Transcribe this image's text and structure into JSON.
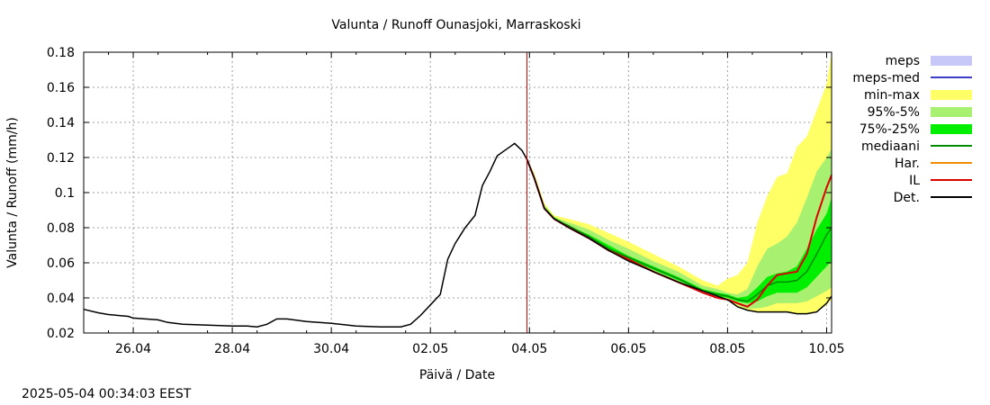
{
  "chart_data": {
    "type": "line",
    "title": "Valunta / Runoff  Ounasjoki, Marraskoski",
    "xlabel": "Päivä / Date",
    "ylabel": "Valunta / Runoff  (mm/h)",
    "timestamp": "2025-05-04 00:34:03 EEST",
    "x_range_days": [
      0,
      15.1
    ],
    "x_ticks": [
      {
        "day": 1,
        "label": "26.04"
      },
      {
        "day": 3,
        "label": "28.04"
      },
      {
        "day": 5,
        "label": "30.04"
      },
      {
        "day": 7,
        "label": "02.05"
      },
      {
        "day": 9,
        "label": "04.05"
      },
      {
        "day": 11,
        "label": "06.05"
      },
      {
        "day": 13,
        "label": "08.05"
      },
      {
        "day": 15,
        "label": "10.05"
      }
    ],
    "ylim": [
      0.02,
      0.18
    ],
    "y_ticks": [
      0.02,
      0.04,
      0.06,
      0.08,
      0.1,
      0.12,
      0.14,
      0.16,
      0.18
    ],
    "grid": true,
    "legend_position": "right",
    "current_time_day": 8.95,
    "colors": {
      "meps": "#c8c8f8",
      "meps_med": "#3c3cc8",
      "min_max": "#ffff66",
      "p95_5": "#a8f070",
      "p75_25": "#00ee00",
      "mediaani": "#008c00",
      "har": "#f08c00",
      "il": "#dc0000",
      "det": "#000000",
      "now_line": "#c80000"
    },
    "legend": [
      {
        "name": "meps",
        "style": "fill",
        "color_key": "meps"
      },
      {
        "name": "meps-med",
        "style": "line",
        "color_key": "meps_med"
      },
      {
        "name": "min-max",
        "style": "fill",
        "color_key": "min_max"
      },
      {
        "name": "95%-5%",
        "style": "fill",
        "color_key": "p95_5"
      },
      {
        "name": "75%-25%",
        "style": "fill",
        "color_key": "p75_25"
      },
      {
        "name": "mediaani",
        "style": "line",
        "color_key": "mediaani"
      },
      {
        "name": "Har.",
        "style": "line",
        "color_key": "har"
      },
      {
        "name": "IL",
        "style": "line",
        "color_key": "il"
      },
      {
        "name": "Det.",
        "style": "line",
        "color_key": "det"
      }
    ],
    "observed": {
      "name": "Det.",
      "x": [
        0,
        0.3,
        0.5,
        0.9,
        1.0,
        1.5,
        1.7,
        2.0,
        2.5,
        3.0,
        3.3,
        3.5,
        3.7,
        3.9,
        4.1,
        4.5,
        5.0,
        5.5,
        6.0,
        6.4,
        6.6,
        6.8,
        7.0,
        7.2,
        7.35,
        7.5,
        7.7,
        7.9,
        8.05,
        8.2,
        8.35,
        8.5,
        8.6,
        8.7,
        8.85,
        8.95
      ],
      "y": [
        0.0335,
        0.0315,
        0.0305,
        0.0295,
        0.0285,
        0.0275,
        0.026,
        0.025,
        0.0245,
        0.024,
        0.024,
        0.0235,
        0.025,
        0.028,
        0.028,
        0.0265,
        0.0255,
        0.024,
        0.0235,
        0.0235,
        0.025,
        0.03,
        0.036,
        0.042,
        0.062,
        0.071,
        0.08,
        0.087,
        0.104,
        0.112,
        0.121,
        0.124,
        0.126,
        0.128,
        0.124,
        0.119
      ]
    },
    "forecast_x": [
      8.95,
      9.1,
      9.3,
      9.5,
      9.8,
      10.2,
      10.6,
      11.0,
      11.5,
      12.0,
      12.5,
      12.8,
      13.0,
      13.2,
      13.4,
      13.6,
      13.8,
      14.0,
      14.2,
      14.4,
      14.6,
      14.8,
      15.0,
      15.1
    ],
    "bands": {
      "min_max": {
        "lo": [
          0.119,
          0.108,
          0.091,
          0.085,
          0.08,
          0.074,
          0.067,
          0.061,
          0.055,
          0.049,
          0.044,
          0.041,
          0.039,
          0.035,
          0.033,
          0.032,
          0.032,
          0.032,
          0.032,
          0.031,
          0.031,
          0.032,
          0.036,
          0.039
        ],
        "hi": [
          0.119,
          0.111,
          0.094,
          0.087,
          0.085,
          0.082,
          0.077,
          0.072,
          0.065,
          0.058,
          0.05,
          0.047,
          0.051,
          0.053,
          0.06,
          0.083,
          0.098,
          0.109,
          0.111,
          0.126,
          0.132,
          0.147,
          0.162,
          0.18
        ]
      },
      "p95_5": {
        "lo": [
          0.119,
          0.108,
          0.091,
          0.085,
          0.08,
          0.074,
          0.067,
          0.061,
          0.055,
          0.049,
          0.044,
          0.041,
          0.04,
          0.036,
          0.034,
          0.034,
          0.035,
          0.037,
          0.037,
          0.037,
          0.038,
          0.041,
          0.044,
          0.046
        ],
        "hi": [
          0.119,
          0.11,
          0.093,
          0.086,
          0.083,
          0.079,
          0.073,
          0.068,
          0.061,
          0.055,
          0.047,
          0.045,
          0.043,
          0.042,
          0.045,
          0.058,
          0.068,
          0.071,
          0.075,
          0.083,
          0.097,
          0.112,
          0.12,
          0.125
        ]
      },
      "p75_25": {
        "lo": [
          0.119,
          0.108,
          0.091,
          0.085,
          0.08,
          0.074,
          0.067,
          0.062,
          0.056,
          0.05,
          0.044,
          0.041,
          0.04,
          0.038,
          0.037,
          0.038,
          0.041,
          0.043,
          0.043,
          0.043,
          0.046,
          0.052,
          0.058,
          0.061
        ],
        "hi": [
          0.119,
          0.109,
          0.092,
          0.086,
          0.081,
          0.076,
          0.07,
          0.064,
          0.058,
          0.052,
          0.045,
          0.043,
          0.042,
          0.04,
          0.041,
          0.046,
          0.052,
          0.054,
          0.055,
          0.058,
          0.068,
          0.079,
          0.088,
          0.097
        ]
      }
    },
    "lines": {
      "mediaani": [
        0.119,
        0.108,
        0.091,
        0.085,
        0.081,
        0.075,
        0.068,
        0.063,
        0.057,
        0.051,
        0.044,
        0.042,
        0.041,
        0.039,
        0.038,
        0.042,
        0.047,
        0.049,
        0.049,
        0.05,
        0.055,
        0.065,
        0.076,
        0.08
      ],
      "il": [
        0.119,
        0.108,
        0.091,
        0.085,
        0.08,
        0.074,
        0.067,
        0.062,
        0.055,
        0.049,
        0.043,
        0.04,
        0.039,
        0.037,
        0.035,
        0.039,
        0.047,
        0.053,
        0.054,
        0.055,
        0.065,
        0.086,
        0.103,
        0.11
      ],
      "det": [
        0.119,
        0.108,
        0.091,
        0.085,
        0.08,
        0.074,
        0.067,
        0.061,
        0.055,
        0.049,
        0.044,
        0.041,
        0.039,
        0.035,
        0.033,
        0.032,
        0.032,
        0.032,
        0.032,
        0.031,
        0.031,
        0.032,
        0.037,
        0.041
      ]
    }
  }
}
